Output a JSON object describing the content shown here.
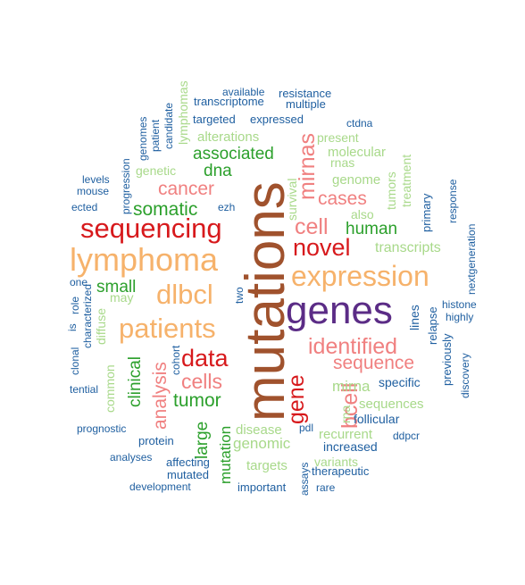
{
  "word_cloud": {
    "words": [
      {
        "text": "mutations",
        "color": "#A0522D",
        "rot": -90
      },
      {
        "text": "genes",
        "color": "#5B2C86",
        "rot": 0
      },
      {
        "text": "expression",
        "color": "#F6B26B",
        "rot": 0
      },
      {
        "text": "lymphoma",
        "color": "#F6B26B",
        "rot": 0
      },
      {
        "text": "sequencing",
        "color": "#D7191C",
        "rot": 0
      },
      {
        "text": "patients",
        "color": "#F6B26B",
        "rot": 0
      },
      {
        "text": "dlbcl",
        "color": "#F6B26B",
        "rot": 0
      },
      {
        "text": "novel",
        "color": "#D7191C",
        "rot": 0
      },
      {
        "text": "cell",
        "color": "#F08080",
        "rot": 0
      },
      {
        "text": "identified",
        "color": "#F08080",
        "rot": 0
      },
      {
        "text": "data",
        "color": "#D7191C",
        "rot": 0
      },
      {
        "text": "sequence",
        "color": "#F08080",
        "rot": 0
      },
      {
        "text": "cells",
        "color": "#F08080",
        "rot": 0
      },
      {
        "text": "gene",
        "color": "#D7191C",
        "rot": -90
      },
      {
        "text": "bcell",
        "color": "#F08080",
        "rot": -90
      },
      {
        "text": "mirnas",
        "color": "#F08080",
        "rot": -90
      },
      {
        "text": "analysis",
        "color": "#F08080",
        "rot": -90
      },
      {
        "text": "cancer",
        "color": "#F08080",
        "rot": 0
      },
      {
        "text": "cases",
        "color": "#F08080",
        "rot": 0
      },
      {
        "text": "somatic",
        "color": "#2CA02C",
        "rot": 0
      },
      {
        "text": "tumor",
        "color": "#2CA02C",
        "rot": 0
      },
      {
        "text": "associated",
        "color": "#2CA02C",
        "rot": 0
      },
      {
        "text": "human",
        "color": "#2CA02C",
        "rot": 0
      },
      {
        "text": "small",
        "color": "#2CA02C",
        "rot": 0
      },
      {
        "text": "dna",
        "color": "#2CA02C",
        "rot": 0
      },
      {
        "text": "clinical",
        "color": "#2CA02C",
        "rot": -90
      },
      {
        "text": "large",
        "color": "#2CA02C",
        "rot": -90
      },
      {
        "text": "mutation",
        "color": "#2CA02C",
        "rot": -90
      },
      {
        "text": "genomic",
        "color": "#A8D98A",
        "rot": 0
      },
      {
        "text": "mirna",
        "color": "#A8D98A",
        "rot": 0
      },
      {
        "text": "transcripts",
        "color": "#A8D98A",
        "rot": 0
      },
      {
        "text": "alterations",
        "color": "#A8D98A",
        "rot": 0
      },
      {
        "text": "genome",
        "color": "#A8D98A",
        "rot": 0
      },
      {
        "text": "molecular",
        "color": "#A8D98A",
        "rot": 0
      },
      {
        "text": "sequences",
        "color": "#A8D98A",
        "rot": 0
      },
      {
        "text": "recurrent",
        "color": "#A8D98A",
        "rot": 0
      },
      {
        "text": "disease",
        "color": "#A8D98A",
        "rot": 0
      },
      {
        "text": "targets",
        "color": "#A8D98A",
        "rot": 0
      },
      {
        "text": "variants",
        "color": "#A8D98A",
        "rot": 0
      },
      {
        "text": "genetic",
        "color": "#A8D98A",
        "rot": 0
      },
      {
        "text": "present",
        "color": "#A8D98A",
        "rot": 0
      },
      {
        "text": "rnas",
        "color": "#A8D98A",
        "rot": 0
      },
      {
        "text": "also",
        "color": "#A8D98A",
        "rot": 0
      },
      {
        "text": "may",
        "color": "#A8D98A",
        "rot": 0
      },
      {
        "text": "diffuse",
        "color": "#A8D98A",
        "rot": -90
      },
      {
        "text": "common",
        "color": "#A8D98A",
        "rot": -90
      },
      {
        "text": "lymphomas",
        "color": "#A8D98A",
        "rot": -90
      },
      {
        "text": "survival",
        "color": "#A8D98A",
        "rot": -90
      },
      {
        "text": "tumors",
        "color": "#A8D98A",
        "rot": -90
      },
      {
        "text": "treatment",
        "color": "#A8D98A",
        "rot": -90
      },
      {
        "text": "rna",
        "color": "#A8D98A",
        "rot": -90
      },
      {
        "text": "follicular",
        "color": "#1F5FA0",
        "rot": 0
      },
      {
        "text": "increased",
        "color": "#1F5FA0",
        "rot": 0
      },
      {
        "text": "specific",
        "color": "#1F5FA0",
        "rot": 0
      },
      {
        "text": "protein",
        "color": "#1F5FA0",
        "rot": 0
      },
      {
        "text": "expressed",
        "color": "#1F5FA0",
        "rot": 0
      },
      {
        "text": "histone",
        "color": "#1F5FA0",
        "rot": 0
      },
      {
        "text": "highly",
        "color": "#1F5FA0",
        "rot": 0
      },
      {
        "text": "therapeutic",
        "color": "#1F5FA0",
        "rot": 0
      },
      {
        "text": "affecting",
        "color": "#1F5FA0",
        "rot": 0
      },
      {
        "text": "mutated",
        "color": "#1F5FA0",
        "rot": 0
      },
      {
        "text": "important",
        "color": "#1F5FA0",
        "rot": 0
      },
      {
        "text": "rare",
        "color": "#1F5FA0",
        "rot": 0
      },
      {
        "text": "prognostic",
        "color": "#1F5FA0",
        "rot": 0
      },
      {
        "text": "analyses",
        "color": "#1F5FA0",
        "rot": 0
      },
      {
        "text": "development",
        "color": "#1F5FA0",
        "rot": 0
      },
      {
        "text": "ddpcr",
        "color": "#1F5FA0",
        "rot": 0
      },
      {
        "text": "pdl",
        "color": "#1F5FA0",
        "rot": 0
      },
      {
        "text": "targeted",
        "color": "#1F5FA0",
        "rot": 0
      },
      {
        "text": "transcriptome",
        "color": "#1F5FA0",
        "rot": 0
      },
      {
        "text": "available",
        "color": "#1F5FA0",
        "rot": 0
      },
      {
        "text": "resistance",
        "color": "#1F5FA0",
        "rot": 0
      },
      {
        "text": "multiple",
        "color": "#1F5FA0",
        "rot": 0
      },
      {
        "text": "ctdna",
        "color": "#1F5FA0",
        "rot": 0
      },
      {
        "text": "levels",
        "color": "#1F5FA0",
        "rot": 0
      },
      {
        "text": "mouse",
        "color": "#1F5FA0",
        "rot": 0
      },
      {
        "text": "ected",
        "color": "#1F5FA0",
        "rot": 0
      },
      {
        "text": "ezh",
        "color": "#1F5FA0",
        "rot": 0
      },
      {
        "text": "one",
        "color": "#1F5FA0",
        "rot": 0
      },
      {
        "text": "tential",
        "color": "#1F5FA0",
        "rot": 0
      },
      {
        "text": "lines",
        "color": "#1F5FA0",
        "rot": -90
      },
      {
        "text": "relapse",
        "color": "#1F5FA0",
        "rot": -90
      },
      {
        "text": "previously",
        "color": "#1F5FA0",
        "rot": -90
      },
      {
        "text": "discovery",
        "color": "#1F5FA0",
        "rot": -90
      },
      {
        "text": "nextgeneration",
        "color": "#1F5FA0",
        "rot": -90
      },
      {
        "text": "primary",
        "color": "#1F5FA0",
        "rot": -90
      },
      {
        "text": "response",
        "color": "#1F5FA0",
        "rot": -90
      },
      {
        "text": "progression",
        "color": "#1F5FA0",
        "rot": -90
      },
      {
        "text": "genomes",
        "color": "#1F5FA0",
        "rot": -90
      },
      {
        "text": "patient",
        "color": "#1F5FA0",
        "rot": -90
      },
      {
        "text": "candidate",
        "color": "#1F5FA0",
        "rot": -90
      },
      {
        "text": "two",
        "color": "#1F5FA0",
        "rot": -90
      },
      {
        "text": "cohort",
        "color": "#1F5FA0",
        "rot": -90
      },
      {
        "text": "role",
        "color": "#1F5FA0",
        "rot": -90
      },
      {
        "text": "characterized",
        "color": "#1F5FA0",
        "rot": -90
      },
      {
        "text": "clonal",
        "color": "#1F5FA0",
        "rot": -90
      },
      {
        "text": "is",
        "color": "#1F5FA0",
        "rot": -90
      },
      {
        "text": "assays",
        "color": "#1F5FA0",
        "rot": -90
      }
    ]
  }
}
